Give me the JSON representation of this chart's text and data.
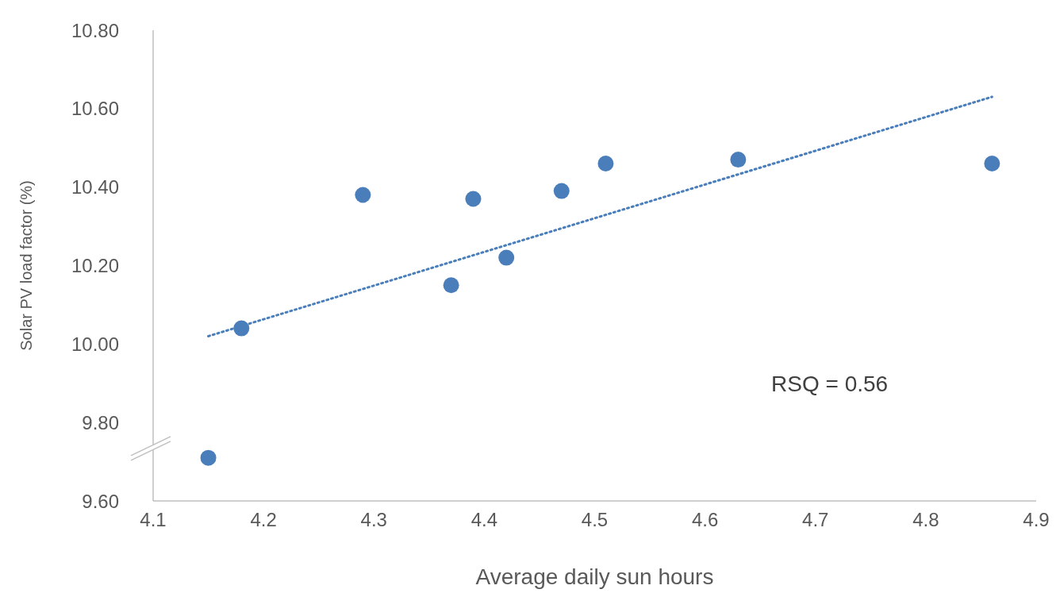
{
  "chart_data": {
    "type": "scatter",
    "xlabel": "Average daily sun hours",
    "ylabel": "Solar PV load factor (%)",
    "xlim": [
      4.1,
      4.9
    ],
    "xticks": [
      4.1,
      4.2,
      4.3,
      4.4,
      4.5,
      4.6,
      4.7,
      4.8,
      4.9
    ],
    "ylim": [
      9.6,
      10.8
    ],
    "yticks": [
      {
        "value": 9.6,
        "label": "9.60"
      },
      {
        "value": 9.8,
        "label": "9.80"
      },
      {
        "value": 10,
        "label": "10.00"
      },
      {
        "value": 10.2,
        "label": "10.20"
      },
      {
        "value": 10.4,
        "label": "10.40"
      },
      {
        "value": 10.6,
        "label": "10.60"
      },
      {
        "value": 10.8,
        "label": "10.80"
      }
    ],
    "grid": false,
    "marker": "circle",
    "series": [
      {
        "color": "#4a7ebb",
        "x": [
          4.15,
          4.18,
          4.29,
          4.37,
          4.39,
          4.42,
          4.47,
          4.51,
          4.63,
          4.86
        ],
        "values": [
          9.71,
          10.04,
          10.38,
          10.15,
          10.37,
          10.22,
          10.39,
          10.46,
          10.47,
          10.46
        ]
      },
      {
        "type": "line",
        "color": "#4a7ebb",
        "line_style": "dotted",
        "marker": "none",
        "x": [
          4.15,
          4.86
        ],
        "values": [
          10.02,
          10.63
        ]
      }
    ],
    "annotations": [
      "RSQ = 0.56"
    ]
  }
}
